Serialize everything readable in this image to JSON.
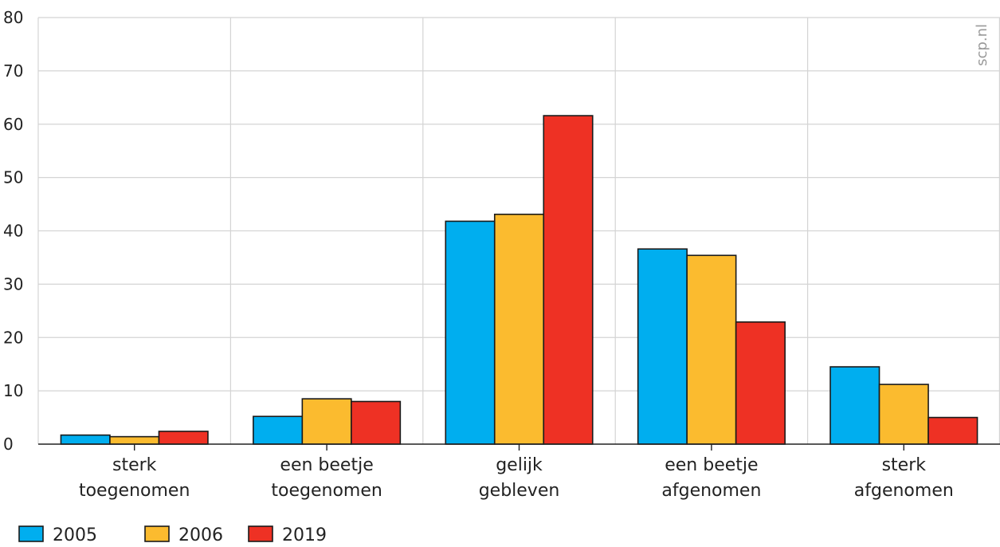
{
  "chart_data": {
    "type": "bar",
    "categories": [
      [
        "sterk",
        "toegenomen"
      ],
      [
        "een beetje",
        "toegenomen"
      ],
      [
        "gelijk",
        "gebleven"
      ],
      [
        "een beetje",
        "afgenomen"
      ],
      [
        "sterk",
        "afgenomen"
      ]
    ],
    "series": [
      {
        "name": "2005",
        "color": "#00aeef",
        "values": [
          1.7,
          5.2,
          41.8,
          36.6,
          14.5
        ]
      },
      {
        "name": "2006",
        "color": "#fbbb2f",
        "values": [
          1.4,
          8.5,
          43.1,
          35.4,
          11.2
        ]
      },
      {
        "name": "2019",
        "color": "#ee3124",
        "values": [
          2.4,
          8.0,
          61.6,
          22.9,
          5.0
        ]
      }
    ],
    "ylim": [
      0,
      80
    ],
    "yticks": [
      0,
      10,
      20,
      30,
      40,
      50,
      60,
      70,
      80
    ],
    "grid": true,
    "legend_position": "bottom-left",
    "watermark": "scp.nl"
  }
}
